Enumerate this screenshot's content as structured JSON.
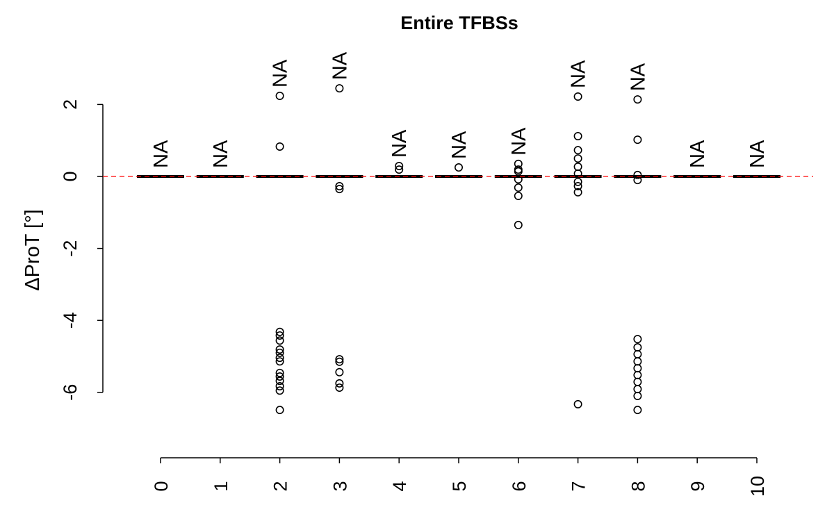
{
  "chart_data": {
    "type": "boxplot",
    "title": "Entire TFBSs",
    "xlabel": "",
    "ylabel": "ΔProT [°]",
    "ylim": [
      -7.8,
      3.7
    ],
    "yticks": [
      2,
      0,
      -2,
      -4,
      -6
    ],
    "categories": [
      "0",
      "1",
      "2",
      "3",
      "4",
      "5",
      "6",
      "7",
      "8",
      "9",
      "10"
    ],
    "median": [
      0,
      0,
      0,
      0,
      0,
      0,
      0,
      0,
      0,
      0,
      0
    ],
    "box_annotation": "NA",
    "reference_line": {
      "y": 0,
      "color": "#ff0000",
      "style": "dashed"
    },
    "outliers": [
      [],
      [],
      [
        2.24,
        0.83,
        -4.32,
        -4.42,
        -4.56,
        -4.81,
        -4.9,
        -5.04,
        -5.14,
        -5.46,
        -5.56,
        -5.68,
        -5.83,
        -5.95,
        -6.49
      ],
      [
        2.45,
        -0.27,
        -0.35,
        -5.08,
        -5.15,
        -5.44,
        -5.75,
        -5.87
      ],
      [
        0.29,
        0.19
      ],
      [
        0.25
      ],
      [
        0.35,
        0.19,
        0.14,
        -0.08,
        -0.31,
        -0.54,
        -1.35
      ],
      [
        2.22,
        1.12,
        0.73,
        0.5,
        0.27,
        0.08,
        -0.15,
        -0.27,
        -0.44,
        -6.33
      ],
      [
        2.14,
        1.02,
        0.04,
        -0.1,
        -4.52,
        -4.75,
        -4.94,
        -5.14,
        -5.33,
        -5.52,
        -5.71,
        -5.91,
        -6.1,
        -6.49
      ],
      [],
      []
    ],
    "grid": false
  }
}
